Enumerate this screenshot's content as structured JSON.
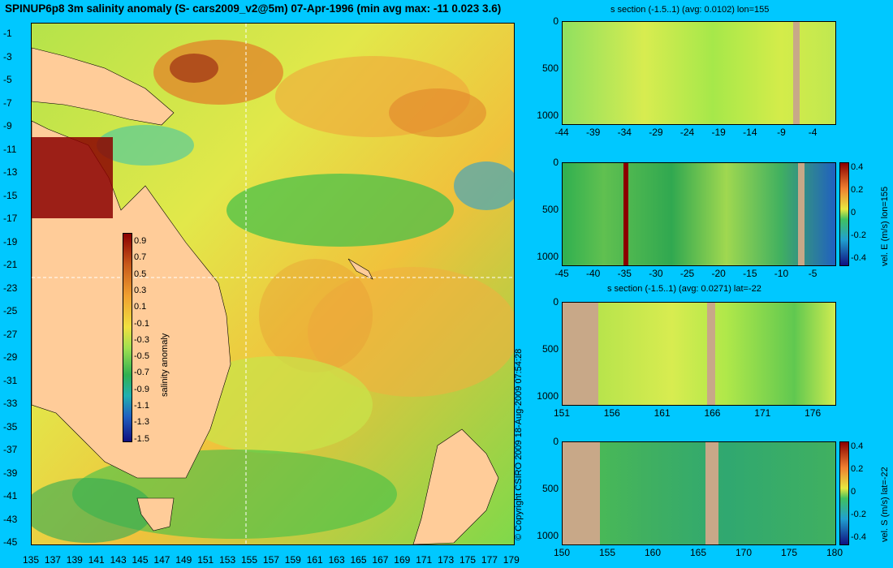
{
  "title": "SPINUP6p8 3m salinity anomaly (S- cars2009_v2@5m) 07-Apr-1996 (min avg max: -11 0.023 3.6)",
  "copyright": "© Copyright CSIRO 2009   18-Aug-2009 07:54:28",
  "map": {
    "lat_ticks": [
      "-1",
      "-3",
      "-5",
      "-7",
      "-9",
      "-11",
      "-13",
      "-15",
      "-17",
      "-19",
      "-21",
      "-23",
      "-25",
      "-27",
      "-29",
      "-31",
      "-33",
      "-35",
      "-37",
      "-39",
      "-41",
      "-43",
      "-45"
    ],
    "lon_ticks": [
      "135",
      "137",
      "139",
      "141",
      "143",
      "145",
      "147",
      "149",
      "151",
      "153",
      "155",
      "157",
      "159",
      "161",
      "163",
      "165",
      "167",
      "169",
      "171",
      "173",
      "175",
      "177",
      "179"
    ],
    "colorbar": {
      "label": "salinity anomaly",
      "ticks": [
        "0.9",
        "0.7",
        "0.5",
        "0.3",
        "0.1",
        "-0.1",
        "-0.3",
        "-0.5",
        "-0.7",
        "-0.9",
        "-1.1",
        "-1.3",
        "-1.5"
      ]
    },
    "crosshair": {
      "lon": 155,
      "lat": -22
    }
  },
  "sections": [
    {
      "title": "s section (-1.5..1) (avg: 0.0102) lon=155",
      "y_ticks": [
        "0",
        "500",
        "1000"
      ],
      "x_ticks": [
        "-44",
        "-39",
        "-34",
        "-29",
        "-24",
        "-19",
        "-14",
        "-9",
        "-4"
      ],
      "colorbar": null
    },
    {
      "title": "",
      "y_ticks": [
        "0",
        "500",
        "1000"
      ],
      "x_ticks": [
        "-45",
        "-40",
        "-35",
        "-30",
        "-25",
        "-20",
        "-15",
        "-10",
        "-5"
      ],
      "colorbar": {
        "label": "vel. E (m/s) lon=155",
        "ticks": [
          "0.4",
          "0.2",
          "0",
          "-0.2",
          "-0.4"
        ]
      }
    },
    {
      "title": "s section (-1.5..1) (avg: 0.0271) lat=-22",
      "y_ticks": [
        "0",
        "500",
        "1000"
      ],
      "x_ticks": [
        "151",
        "156",
        "161",
        "166",
        "171",
        "176"
      ],
      "colorbar": null
    },
    {
      "title": "",
      "y_ticks": [
        "0",
        "500",
        "1000"
      ],
      "x_ticks": [
        "150",
        "155",
        "160",
        "165",
        "170",
        "175",
        "180"
      ],
      "colorbar": {
        "label": "vel. S (m/s) lat=-22",
        "ticks": [
          "0.4",
          "0.2",
          "0",
          "-0.2",
          "-0.4"
        ]
      }
    }
  ],
  "colors": {
    "background": "#00c8ff",
    "land": "#ffcc99",
    "section_land": "#c8a888"
  }
}
